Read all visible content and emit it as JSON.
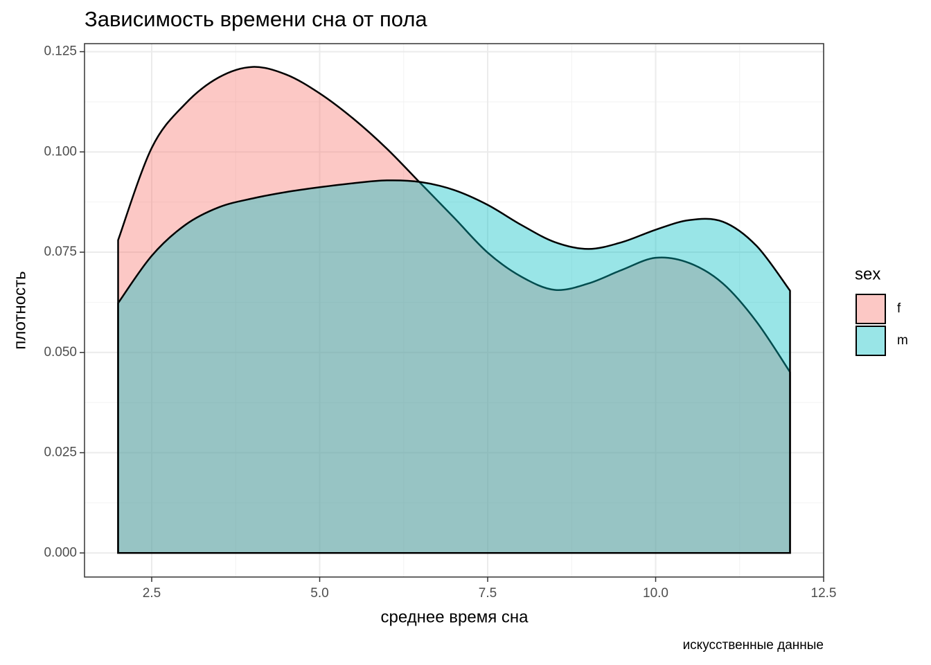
{
  "chart_data": {
    "type": "area",
    "title": "Зависимость времени сна от пола",
    "x_label": "среднее время сна",
    "y_label": "плотность",
    "caption": "искусственные данные",
    "legend_title": "sex",
    "legend_position": "right",
    "grid": true,
    "x": [
      2.0,
      2.5,
      3.0,
      3.5,
      4.0,
      4.5,
      5.0,
      5.5,
      6.0,
      6.5,
      7.0,
      7.5,
      8.0,
      8.5,
      9.0,
      9.5,
      10.0,
      10.5,
      11.0,
      11.5,
      12.0
    ],
    "series": [
      {
        "name": "f",
        "color": "#F8766D",
        "values": [
          0.078,
          0.101,
          0.112,
          0.1186,
          0.1212,
          0.1193,
          0.1146,
          0.1083,
          0.1008,
          0.0922,
          0.0836,
          0.0749,
          0.0689,
          0.0656,
          0.0672,
          0.0706,
          0.0736,
          0.0723,
          0.0672,
          0.0577,
          0.0451
        ]
      },
      {
        "name": "m",
        "color": "#00BFC4",
        "values": [
          0.0623,
          0.0741,
          0.0818,
          0.0862,
          0.0884,
          0.09,
          0.0912,
          0.0922,
          0.0929,
          0.0925,
          0.0905,
          0.0868,
          0.0818,
          0.0775,
          0.0758,
          0.0775,
          0.0806,
          0.083,
          0.0826,
          0.0766,
          0.0654
        ]
      }
    ],
    "xlim": [
      1.5,
      12.5
    ],
    "xticks": [
      {
        "value": 2.5,
        "label": "2.5"
      },
      {
        "value": 5,
        "label": "5.0"
      },
      {
        "value": 7.5,
        "label": "7.5"
      },
      {
        "value": 10,
        "label": "10.0"
      },
      {
        "value": 12.5,
        "label": "12.5"
      }
    ],
    "ylim": [
      -0.006,
      0.127
    ],
    "yticks": [
      {
        "value": 0,
        "label": "0.000"
      },
      {
        "value": 0.025,
        "label": "0.025"
      },
      {
        "value": 0.05,
        "label": "0.050"
      },
      {
        "value": 0.075,
        "label": "0.075"
      },
      {
        "value": 0.1,
        "label": "0.100"
      },
      {
        "value": 0.125,
        "label": "0.125"
      }
    ]
  }
}
